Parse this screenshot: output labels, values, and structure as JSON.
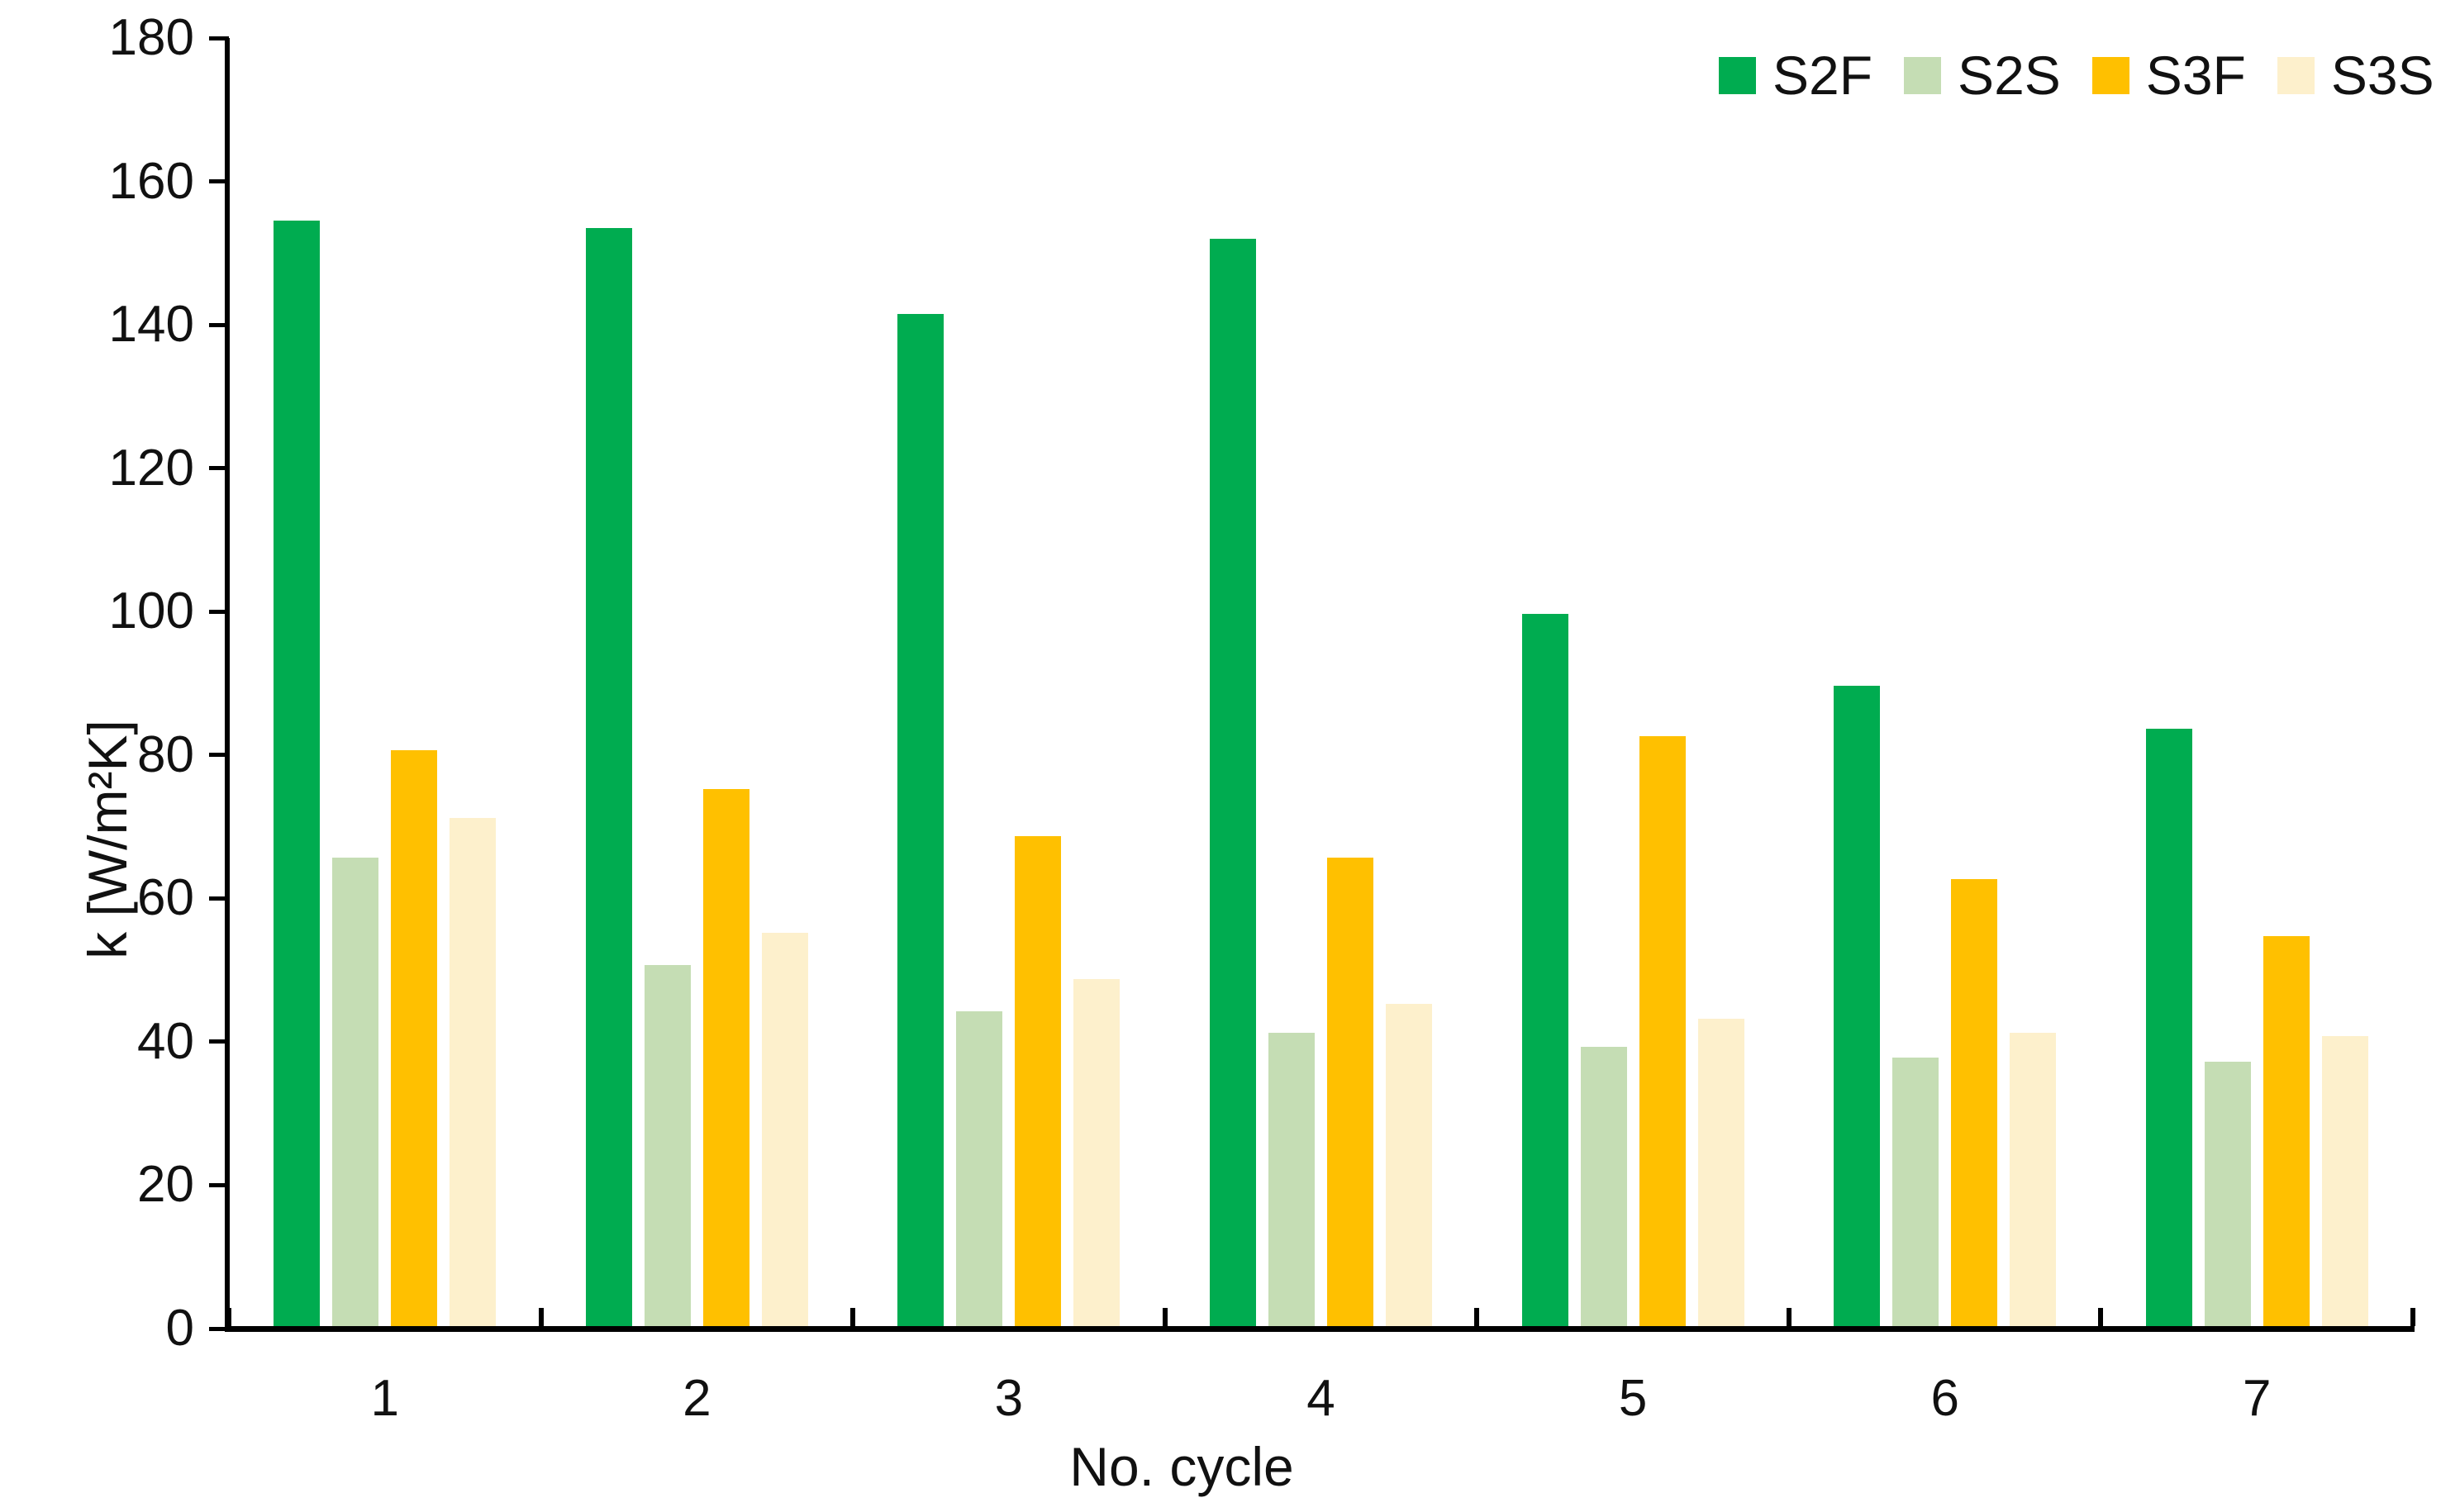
{
  "chart_data": {
    "type": "bar",
    "title": "",
    "categories": [
      "1",
      "2",
      "3",
      "4",
      "5",
      "6",
      "7"
    ],
    "series": [
      {
        "name": "S2F",
        "color": "#00AC50",
        "values": [
          154.5,
          153.5,
          141.5,
          152.0,
          99.5,
          89.5,
          83.5
        ]
      },
      {
        "name": "S2S",
        "color": "#C5DDB4",
        "values": [
          65.5,
          50.5,
          44.0,
          41.0,
          39.0,
          37.5,
          37.0
        ]
      },
      {
        "name": "S3F",
        "color": "#FFC000",
        "values": [
          80.5,
          75.0,
          68.5,
          65.5,
          82.5,
          62.5,
          54.5
        ]
      },
      {
        "name": "S3S",
        "color": "#FDF0CC",
        "values": [
          71.0,
          55.0,
          48.5,
          45.0,
          43.0,
          41.0,
          40.5
        ]
      }
    ],
    "xlabel": "No. cycle",
    "ylabel": "k [W/m²K]",
    "ylim": [
      0,
      180
    ],
    "ytick_step": 20,
    "yticks": [
      0,
      20,
      40,
      60,
      80,
      100,
      120,
      140,
      160,
      180
    ],
    "grid": false,
    "legend_position": "top-right",
    "legend_labels": [
      "S2F",
      "S2S",
      "S3F",
      "S3S"
    ],
    "axis_color": "#000000",
    "text_color": "#111111",
    "background_color": "#ffffff"
  }
}
